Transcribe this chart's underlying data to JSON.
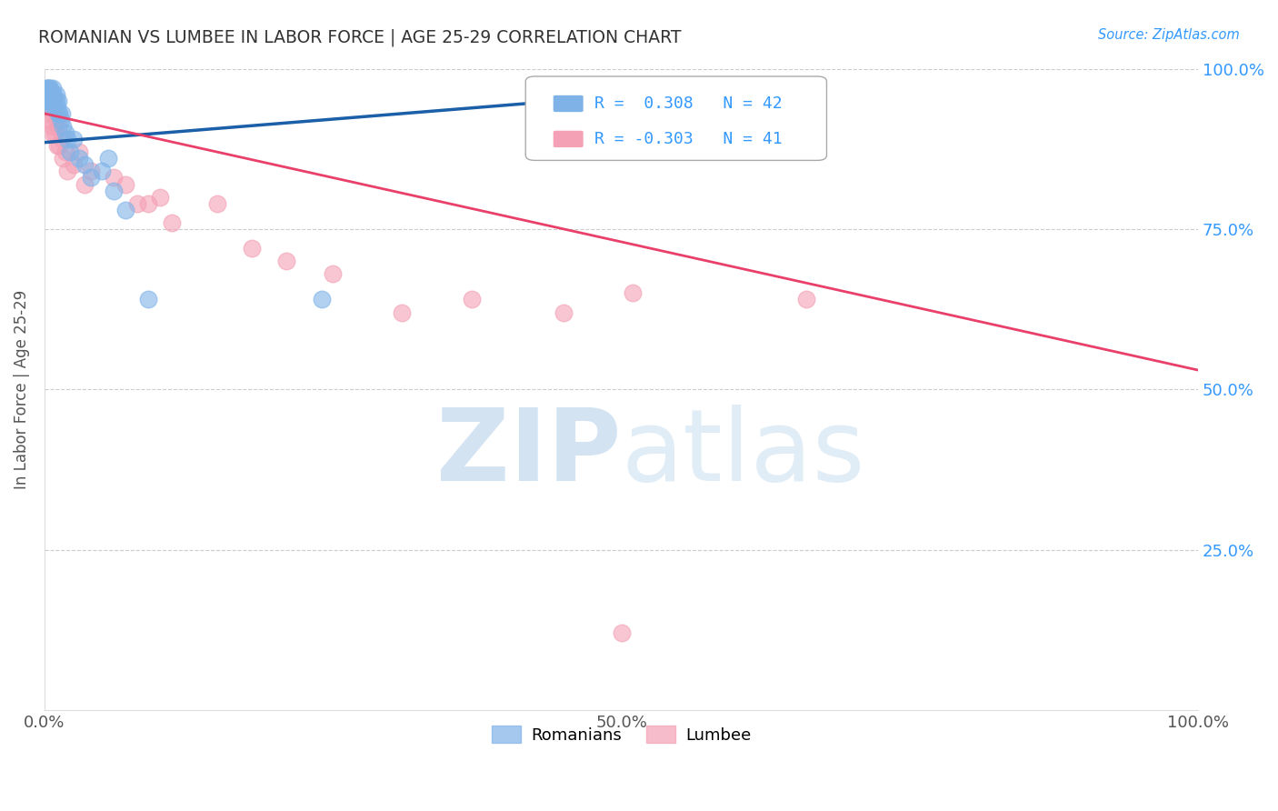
{
  "title": "ROMANIAN VS LUMBEE IN LABOR FORCE | AGE 25-29 CORRELATION CHART",
  "source": "Source: ZipAtlas.com",
  "ylabel": "In Labor Force | Age 25-29",
  "xlim": [
    0.0,
    1.0
  ],
  "ylim": [
    0.0,
    1.0
  ],
  "x_tick_positions": [
    0.0,
    0.5,
    1.0
  ],
  "x_tick_labels": [
    "0.0%",
    "50.0%",
    "100.0%"
  ],
  "y_tick_positions": [
    0.25,
    0.5,
    0.75,
    1.0
  ],
  "y_tick_labels_right": [
    "25.0%",
    "50.0%",
    "75.0%",
    "100.0%"
  ],
  "romanian_color": "#7fb3e8",
  "lumbee_color": "#f4a0b5",
  "romanian_line_color": "#1a5fa8",
  "lumbee_line_color": "#e8406a",
  "legend_r_romanian": "0.308",
  "legend_n_romanian": "42",
  "legend_r_lumbee": "-0.303",
  "legend_n_lumbee": "41",
  "background_color": "#ffffff",
  "grid_color": "#cccccc",
  "right_tick_color": "#3399ff",
  "title_color": "#333333",
  "source_color": "#3399ff",
  "romanian_x": [
    0.001,
    0.001,
    0.002,
    0.002,
    0.003,
    0.003,
    0.003,
    0.004,
    0.004,
    0.005,
    0.005,
    0.005,
    0.006,
    0.006,
    0.007,
    0.007,
    0.008,
    0.008,
    0.009,
    0.01,
    0.01,
    0.011,
    0.012,
    0.012,
    0.013,
    0.014,
    0.015,
    0.016,
    0.018,
    0.02,
    0.022,
    0.025,
    0.03,
    0.035,
    0.04,
    0.05,
    0.055,
    0.06,
    0.07,
    0.09,
    0.24,
    0.62
  ],
  "romanian_y": [
    0.97,
    0.96,
    0.97,
    0.95,
    0.97,
    0.96,
    0.95,
    0.97,
    0.95,
    0.96,
    0.97,
    0.95,
    0.96,
    0.94,
    0.95,
    0.97,
    0.95,
    0.96,
    0.94,
    0.96,
    0.95,
    0.94,
    0.93,
    0.95,
    0.93,
    0.92,
    0.93,
    0.91,
    0.9,
    0.89,
    0.87,
    0.89,
    0.86,
    0.85,
    0.83,
    0.84,
    0.86,
    0.81,
    0.78,
    0.64,
    0.64,
    0.97
  ],
  "lumbee_x": [
    0.001,
    0.002,
    0.002,
    0.003,
    0.003,
    0.004,
    0.005,
    0.005,
    0.006,
    0.007,
    0.007,
    0.008,
    0.009,
    0.01,
    0.011,
    0.012,
    0.013,
    0.015,
    0.016,
    0.018,
    0.02,
    0.025,
    0.03,
    0.035,
    0.04,
    0.06,
    0.07,
    0.08,
    0.09,
    0.1,
    0.11,
    0.15,
    0.18,
    0.21,
    0.25,
    0.31,
    0.37,
    0.45,
    0.51,
    0.66,
    0.5
  ],
  "lumbee_y": [
    0.95,
    0.96,
    0.94,
    0.97,
    0.93,
    0.96,
    0.94,
    0.92,
    0.9,
    0.95,
    0.91,
    0.93,
    0.9,
    0.92,
    0.88,
    0.91,
    0.88,
    0.89,
    0.86,
    0.87,
    0.84,
    0.85,
    0.87,
    0.82,
    0.84,
    0.83,
    0.82,
    0.79,
    0.79,
    0.8,
    0.76,
    0.79,
    0.72,
    0.7,
    0.68,
    0.62,
    0.64,
    0.62,
    0.65,
    0.64,
    0.12
  ],
  "romanian_trend_x": [
    0.0,
    0.62
  ],
  "romanian_trend_y": [
    0.885,
    0.975
  ],
  "lumbee_trend_x": [
    0.0,
    1.0
  ],
  "lumbee_trend_y": [
    0.93,
    0.53
  ]
}
